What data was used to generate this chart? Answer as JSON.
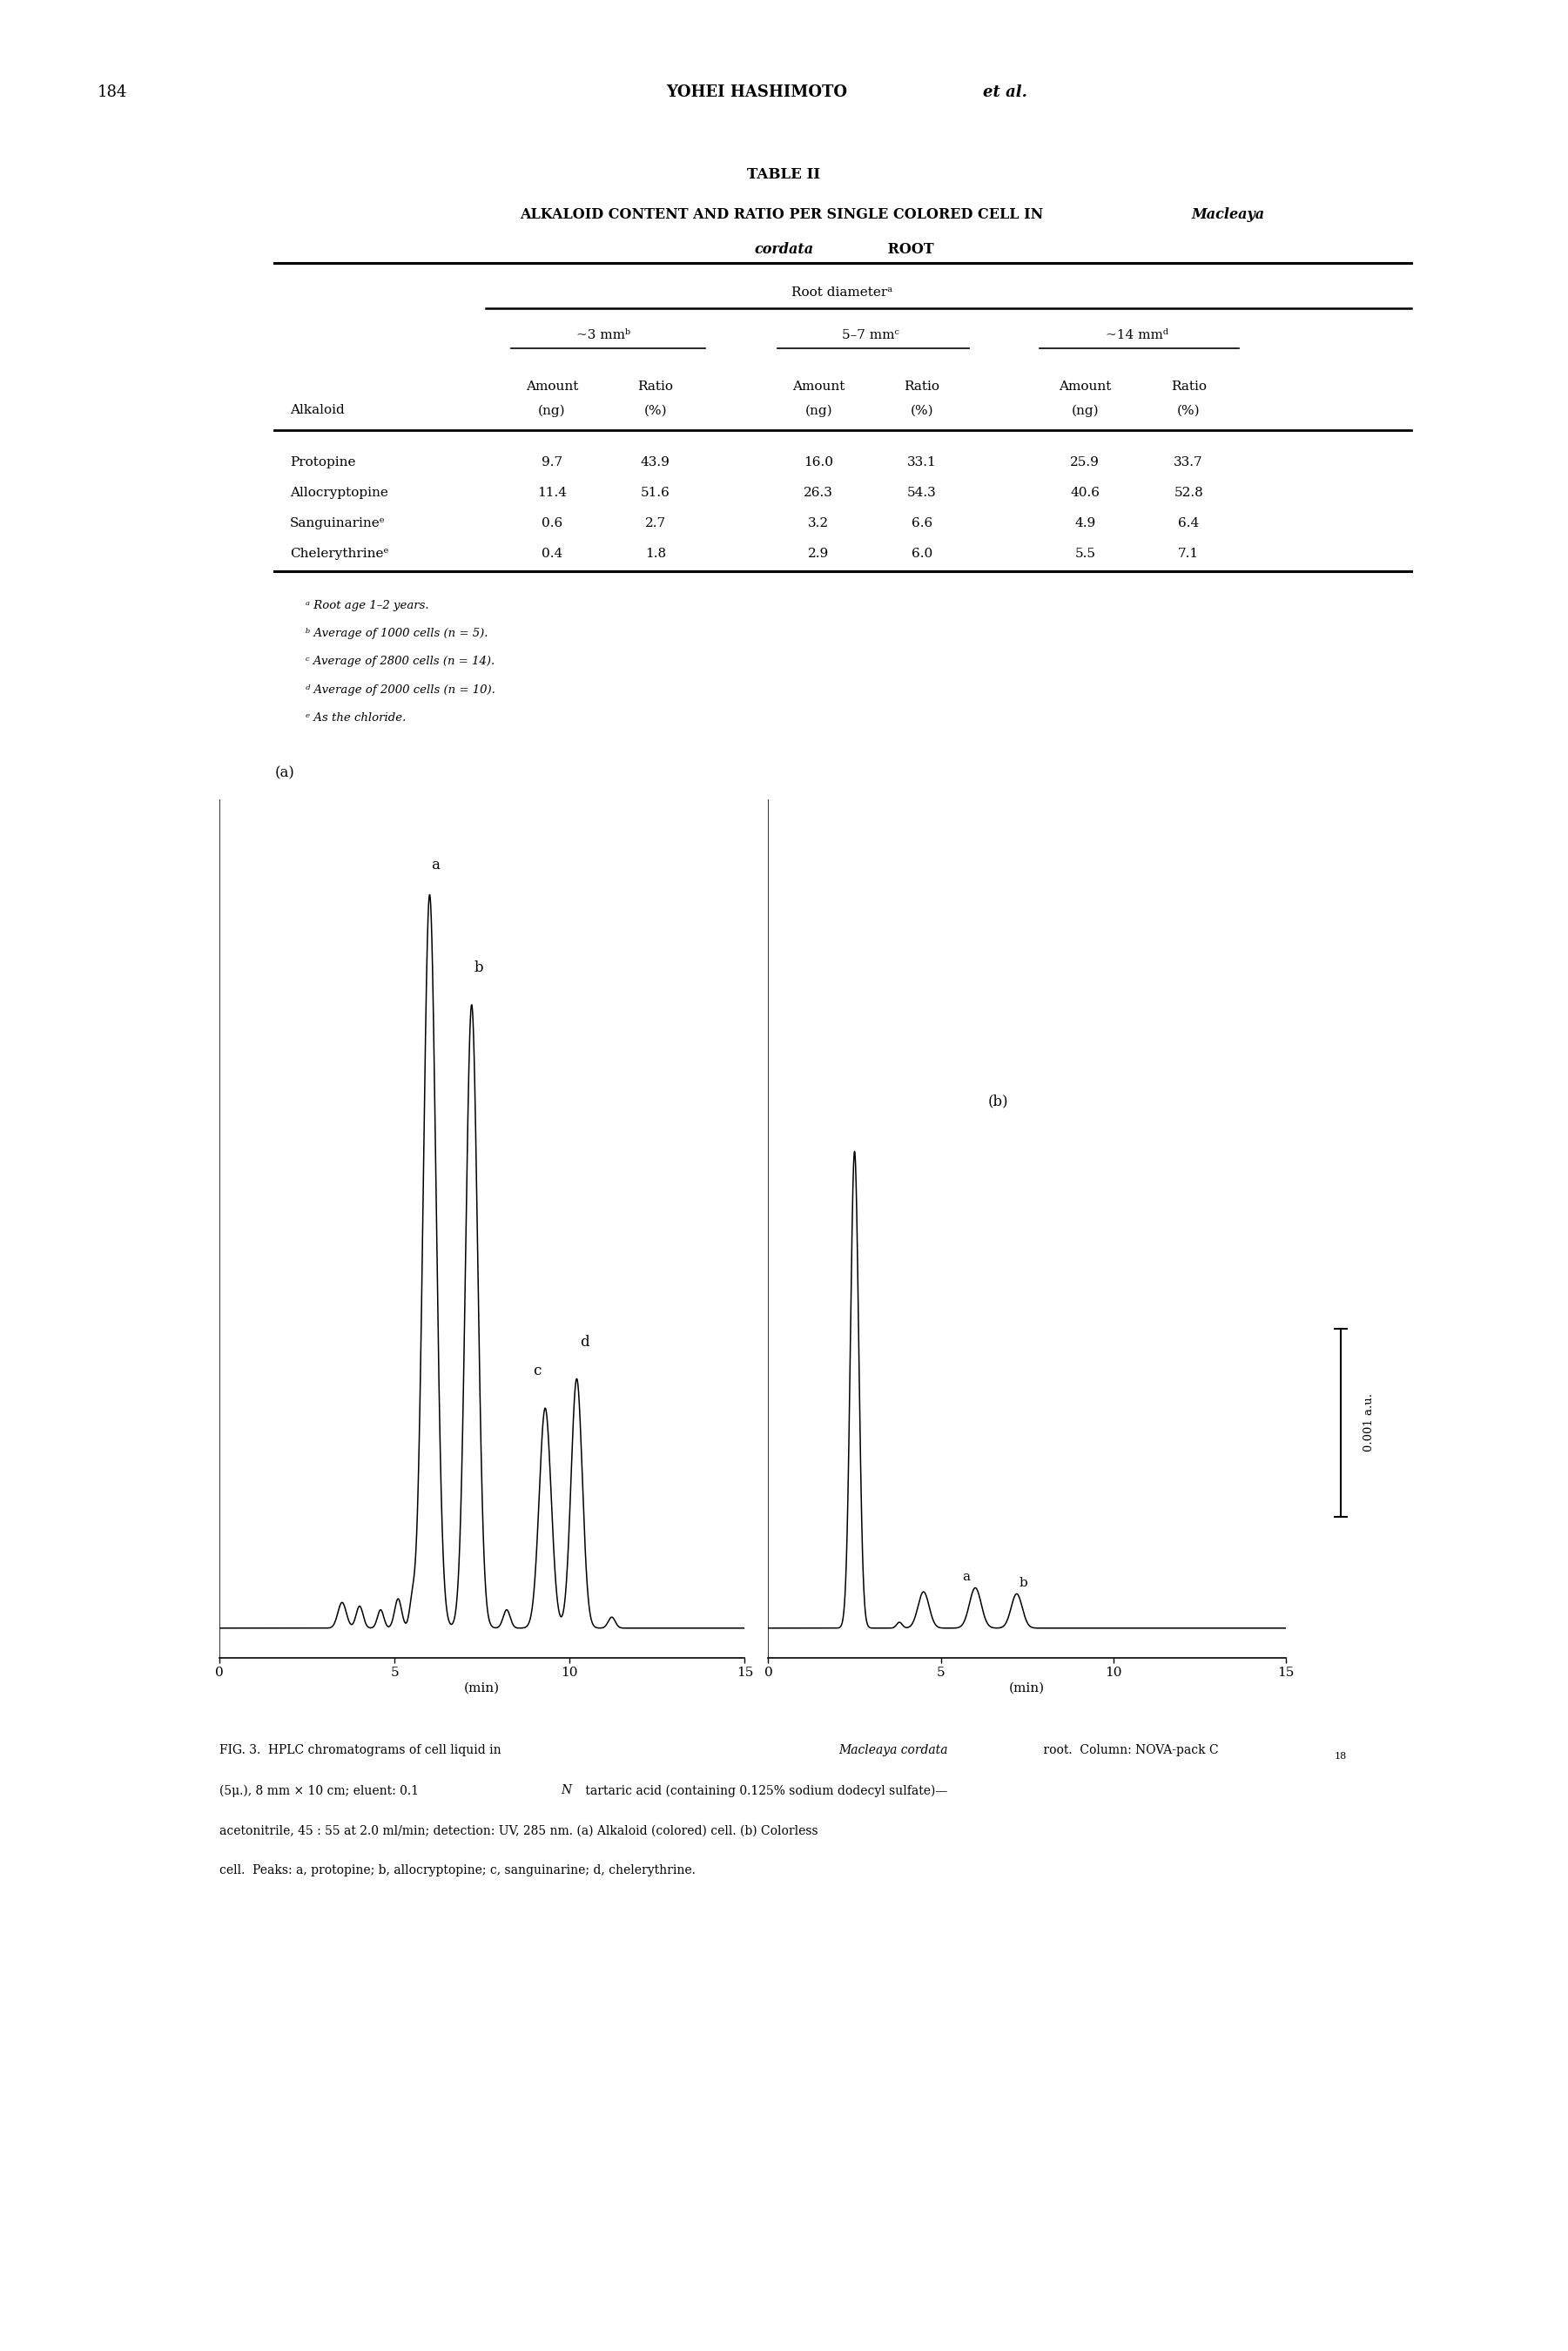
{
  "page_number": "184",
  "table_title": "TABLE II",
  "table_sub1": "ALKALOID CONTENT AND RATIO PER SINGLE COLORED CELL IN ",
  "table_sub1_italic": "Macleaya",
  "table_sub2_italic": "cordata",
  "table_sub2": " ROOT",
  "row_data": [
    [
      "Protopine",
      "9.7",
      "43.9",
      "16.0",
      "33.1",
      "25.9",
      "33.7"
    ],
    [
      "Allocryptopine",
      "11.4",
      "51.6",
      "26.3",
      "54.3",
      "40.6",
      "52.8"
    ],
    [
      "Sanguinarineᵉ",
      "0.6",
      "2.7",
      "3.2",
      "6.6",
      "4.9",
      "6.4"
    ],
    [
      "Chelerythrineᵉ",
      "0.4",
      "1.8",
      "2.9",
      "6.0",
      "5.5",
      "7.1"
    ]
  ],
  "footnotes": [
    "ᵃ Root age 1–2 years.",
    "ᵇ Average of 1000 cells (n = 5).",
    "ᶜ Average of 2800 cells (n = 14).",
    "ᵈ Average of 2000 cells (n = 10).",
    "ᵉ As the chloride."
  ],
  "bg_color": "#ffffff"
}
